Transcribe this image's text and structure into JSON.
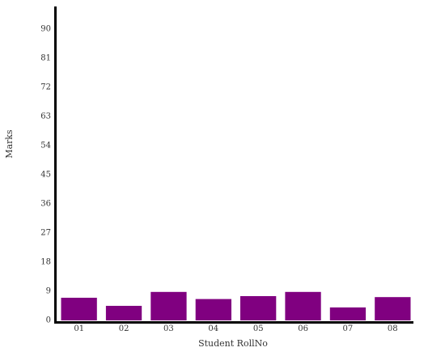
{
  "chart_data": {
    "type": "bar",
    "categories": [
      "01",
      "02",
      "03",
      "04",
      "05",
      "06",
      "07",
      "08"
    ],
    "values": [
      7,
      4.5,
      8.8,
      6.6,
      7.5,
      8.8,
      4,
      7.2
    ],
    "xlabel": "Student RollNo",
    "ylabel": "Marks",
    "ylim": [
      0,
      96
    ],
    "yticks": [
      "0",
      "9",
      "18",
      "27",
      "36",
      "45",
      "54",
      "63",
      "72",
      "81",
      "90"
    ],
    "grid": false,
    "bar_color": "#800080",
    "axis_color": "#000000"
  }
}
